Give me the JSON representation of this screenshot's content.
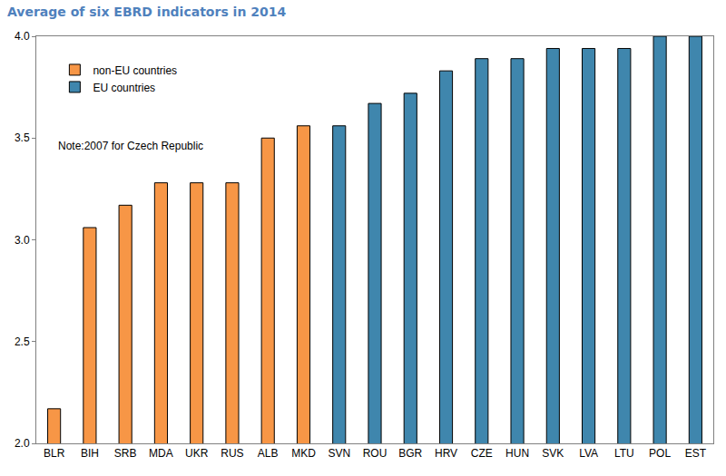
{
  "chart_data": {
    "type": "bar",
    "title": "Average of six EBRD indicators in 2014",
    "annotations": [
      "Note:2007 for Czech Republic"
    ],
    "categories": [
      "BLR",
      "BIH",
      "SRB",
      "MDA",
      "UKR",
      "RUS",
      "ALB",
      "MKD",
      "SVN",
      "ROU",
      "BGR",
      "HRV",
      "CZE",
      "HUN",
      "SVK",
      "LVA",
      "LTU",
      "POL",
      "EST"
    ],
    "series": [
      {
        "name": "non-EU countries",
        "color": "#F79646",
        "values": [
          2.17,
          3.06,
          3.17,
          3.28,
          3.28,
          3.28,
          3.5,
          3.56,
          null,
          null,
          null,
          null,
          null,
          null,
          null,
          null,
          null,
          null,
          null
        ]
      },
      {
        "name": "EU countries",
        "color": "#3F86AD",
        "values": [
          null,
          null,
          null,
          null,
          null,
          null,
          null,
          null,
          3.56,
          3.67,
          3.72,
          3.83,
          3.89,
          3.89,
          3.94,
          3.94,
          3.94,
          4.0,
          4.0
        ]
      }
    ],
    "ylim": [
      2,
      4
    ],
    "yticks": [
      {
        "value": 2,
        "label": "2.0"
      },
      {
        "value": 2.5,
        "label": "2.5"
      },
      {
        "value": 3,
        "label": "3.0"
      },
      {
        "value": 3.5,
        "label": "3.5"
      },
      {
        "value": 4,
        "label": "4.0"
      }
    ],
    "grid": false,
    "legend": "top-left"
  }
}
